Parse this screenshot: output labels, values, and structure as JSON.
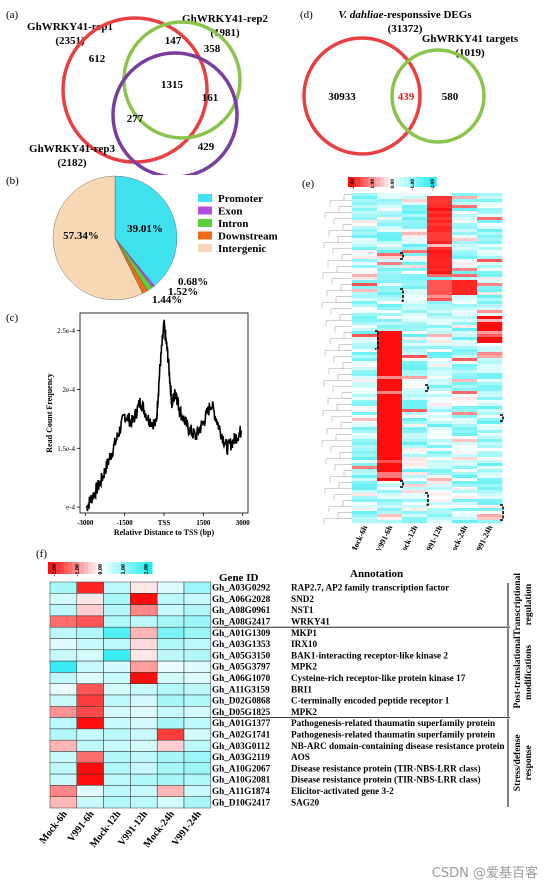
{
  "panels": {
    "a": "(a)",
    "b": "(b)",
    "c": "(c)",
    "d": "(d)",
    "e": "(e)",
    "f": "(f)"
  },
  "venn_a": {
    "sets": [
      {
        "name": "GhWRKY41-rep1",
        "count": "(2351)",
        "color": "#e84040"
      },
      {
        "name": "GhWRKY41-rep2",
        "count": "(1981)",
        "color": "#8ac44c"
      },
      {
        "name": "GhWRKY41-rep3",
        "count": "(2182)",
        "color": "#7a3e9c"
      }
    ],
    "regions": {
      "only1": "612",
      "only2": "358",
      "only3": "429",
      "r12": "147",
      "r23": "161",
      "r13": "277",
      "r123": "1315"
    }
  },
  "venn_d": {
    "set1_name_italic": "V. dahliae",
    "set1_name_rest": "-responssive DEGs",
    "set1_count": "(31372)",
    "set2_name": "GhWRKY41 targets",
    "set2_count": "(1019)",
    "only1": "30933",
    "overlap": "439",
    "only2": "580",
    "overlap_color": "#e02020"
  },
  "chart_data": [
    {
      "type": "pie",
      "panel": "b",
      "slices": [
        {
          "name": "Promoter",
          "value": 39.01,
          "label": "39.01%",
          "color": "#3fe2ee"
        },
        {
          "name": "Exon",
          "value": 0.68,
          "label": "0.68%",
          "color": "#b34de0"
        },
        {
          "name": "Intron",
          "value": 1.52,
          "label": "1.52%",
          "color": "#5ad13c"
        },
        {
          "name": "Downstream",
          "value": 1.44,
          "label": "1.44%",
          "color": "#f06a1a"
        },
        {
          "name": "Intergenic",
          "value": 57.34,
          "label": "57.34%",
          "color": "#f8d7b4"
        }
      ]
    },
    {
      "type": "line",
      "panel": "c",
      "xlabel": "Relative Distance to TSS (bp)",
      "ylabel": "Read Count Frequency",
      "xticks": [
        "-3000",
        "-1500",
        "TSS",
        "1500",
        "3000"
      ],
      "yticks": [
        "e-4",
        "1.5e-4",
        "2e-4",
        "2.5e-4"
      ],
      "xlim": [
        -3000,
        3000
      ],
      "x": [
        -2950,
        -2700,
        -2400,
        -2100,
        -1800,
        -1500,
        -1200,
        -900,
        -600,
        -300,
        -150,
        0,
        150,
        300,
        450,
        600,
        900,
        1200,
        1500,
        1800,
        2100,
        2400,
        2700,
        2950
      ],
      "y": [
        0.0001,
        0.00011,
        0.000122,
        0.00014,
        0.000158,
        0.000178,
        0.000172,
        0.00019,
        0.000175,
        0.00017,
        0.00022,
        0.000255,
        0.000228,
        0.000188,
        0.000198,
        0.000182,
        0.000168,
        0.00016,
        0.000172,
        0.000188,
        0.000168,
        0.00015,
        0.000158,
        0.000165
      ]
    },
    {
      "type": "heatmap",
      "panel": "e",
      "columns": [
        "Mock-6h",
        "V991-6h",
        "Mock-12h",
        "V991-12h",
        "Mock-24h",
        "V991-24h"
      ],
      "scale_ticks": [
        "2.00",
        "1.00",
        "0.00",
        "-1.00",
        "-2.00"
      ]
    },
    {
      "type": "heatmap",
      "panel": "f",
      "columns": [
        "Mock-6h",
        "V991-6h",
        "Mock-12h",
        "V991-12h",
        "Mock-24h",
        "V991-24h"
      ],
      "scale_ticks": [
        "-2.00",
        "-1.00",
        "0.00",
        "1.00",
        "2.00"
      ],
      "header_gene": "Gene ID",
      "header_annotation": "Annotation",
      "rows": [
        {
          "gene": "Gh_A03G0292",
          "annotation": "RAP2.7, AP2 family transcription factor",
          "values": [
            0.8,
            -1.8,
            0.6,
            -0.2,
            0.3,
            0.9
          ]
        },
        {
          "gene": "Gh_A06G2028",
          "annotation": "SND2",
          "values": [
            0.4,
            -0.2,
            0.8,
            -2.0,
            0.6,
            0.5
          ]
        },
        {
          "gene": "Gh_A08G0961",
          "annotation": "NST1",
          "values": [
            0.6,
            -0.4,
            0.7,
            -1.0,
            0.5,
            0.7
          ]
        },
        {
          "gene": "Gh_A08G2417",
          "annotation": "WRKY41",
          "values": [
            -1.2,
            -1.4,
            0.7,
            0.6,
            0.8,
            0.9
          ]
        },
        {
          "gene": "Gh_A01G1309",
          "annotation": "MKP1",
          "values": [
            0.6,
            0.7,
            1.6,
            -0.6,
            1.2,
            0.9
          ]
        },
        {
          "gene": "Gh_A03G1353",
          "annotation": "IRX10",
          "values": [
            0.3,
            0.5,
            0.6,
            -0.3,
            0.7,
            0.6
          ]
        },
        {
          "gene": "Gh_A05G3150",
          "annotation": "BAK1-interacting receptor-like kinase 2",
          "values": [
            0.5,
            0.4,
            1.8,
            -0.2,
            0.6,
            0.7
          ]
        },
        {
          "gene": "Gh_A05G3797",
          "annotation": "MPK2",
          "values": [
            1.8,
            0.5,
            0.4,
            -0.8,
            0.2,
            0.3
          ]
        },
        {
          "gene": "Gh_A06G1070",
          "annotation": "Cysteine-rich receptor-like protein kinase 17",
          "values": [
            0.6,
            0.3,
            0.5,
            -2.1,
            0.4,
            0.3
          ]
        },
        {
          "gene": "Gh_A11G3159",
          "annotation": "BRI1",
          "values": [
            0.2,
            -1.4,
            0.4,
            0.5,
            0.7,
            0.6
          ]
        },
        {
          "gene": "Gh_D02G0868",
          "annotation": "C-terminally encoded peptide receptor 1",
          "values": [
            0.5,
            -1.6,
            0.6,
            0.4,
            0.8,
            0.7
          ]
        },
        {
          "gene": "Gh_D05G1825",
          "annotation": "MPK2",
          "values": [
            -0.9,
            -1.5,
            0.4,
            0.3,
            0.5,
            0.4
          ]
        },
        {
          "gene": "Gh_A01G1377",
          "annotation": "Pathogenesis-related thaumatin superfamily protein",
          "values": [
            0.6,
            -2.0,
            0.5,
            0.4,
            0.8,
            0.6
          ]
        },
        {
          "gene": "Gh_A02G1741",
          "annotation": "Pathogenesis-related thaumatin superfamily protein",
          "values": [
            0.7,
            0.5,
            0.6,
            0.5,
            -1.6,
            0.4
          ]
        },
        {
          "gene": "Gh_A03G0112",
          "annotation": "NB-ARC domain-containing disease resistance protein",
          "values": [
            -0.6,
            0.6,
            0.5,
            0.4,
            -0.4,
            0.6
          ]
        },
        {
          "gene": "Gh_A03G2119",
          "annotation": "AOS",
          "values": [
            0.5,
            -1.2,
            0.7,
            0.6,
            0.8,
            0.9
          ]
        },
        {
          "gene": "Gh_A10G2067",
          "annotation": "Disease resistance protein (TIR-NBS-LRR class)",
          "values": [
            0.6,
            -2.0,
            0.7,
            0.5,
            0.8,
            0.9
          ]
        },
        {
          "gene": "Gh_A10G2081",
          "annotation": "Disease resistance protein (TIR-NBS-LRR class)",
          "values": [
            0.5,
            -2.0,
            0.6,
            0.7,
            0.8,
            0.7
          ]
        },
        {
          "gene": "Gh_A11G1874",
          "annotation": "Elicitor-activated gene 3-2",
          "values": [
            -1.0,
            0.3,
            0.6,
            0.5,
            -0.6,
            0.5
          ]
        },
        {
          "gene": "Gh_D10G2417",
          "annotation": "SAG20",
          "values": [
            -0.6,
            0.5,
            0.7,
            0.6,
            0.4,
            0.8
          ]
        }
      ],
      "groups": [
        {
          "label_lines": [
            "Transcriptional",
            "regulation"
          ],
          "rows": 4
        },
        {
          "label_lines": [
            "Post-translational",
            "modifications"
          ],
          "rows": 8
        },
        {
          "label_lines": [
            "Stress/defense",
            "response"
          ],
          "rows": 8
        }
      ]
    }
  ],
  "watermark": "CSDN @爱基百客"
}
